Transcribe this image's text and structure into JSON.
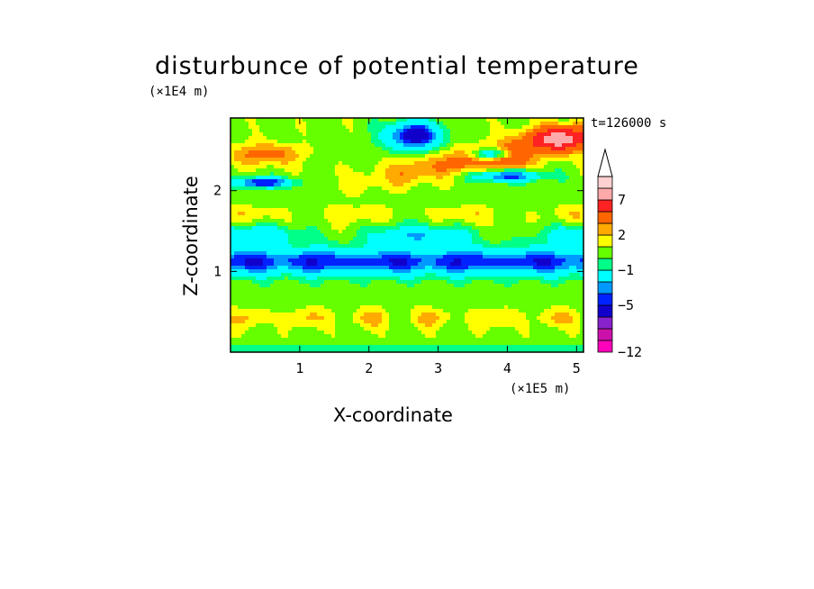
{
  "chart_data": {
    "type": "heatmap",
    "title": "disturbunce of potential temperature",
    "xlabel": "X-coordinate",
    "ylabel": "Z-coordinate",
    "x_unit": "(×1E5 m)",
    "y_unit": "(×1E4 m)",
    "annotation": "t=126000 s",
    "xlim": [
      0,
      5.1
    ],
    "ylim": [
      0,
      2.9
    ],
    "x_ticks": [
      1,
      2,
      3,
      4,
      5
    ],
    "y_ticks": [
      1,
      2
    ],
    "colorbar": {
      "levels": [
        -12,
        -11,
        -9,
        -7,
        -5,
        -4,
        -3,
        -1,
        0,
        1,
        2,
        3,
        5,
        7,
        9
      ],
      "tick_labels": [
        {
          "value": -12,
          "label": "−12"
        },
        {
          "value": -5,
          "label": "−5"
        },
        {
          "value": -1,
          "label": "−1"
        },
        {
          "value": 2,
          "label": "2"
        },
        {
          "value": 7,
          "label": "7"
        }
      ],
      "colors": [
        "#ff00bb",
        "#cc11aa",
        "#8822cc",
        "#1100cc",
        "#0022ff",
        "#0099ff",
        "#00ffff",
        "#00ff88",
        "#66ff00",
        "#ffff00",
        "#ffaa00",
        "#ff6600",
        "#ff2222",
        "#ffaaaa",
        "#ffd0d0"
      ],
      "extend": "max"
    },
    "features": [
      {
        "x_range": [
          0,
          5.1
        ],
        "z_range": [
          0.85,
          1.4
        ],
        "value_range": [
          -5,
          -3
        ],
        "description": "continuous cold band"
      },
      {
        "x_range": [
          2.2,
          3.2
        ],
        "z_range": [
          2.45,
          2.85
        ],
        "value_range": [
          -5,
          -3
        ],
        "description": "cold core aloft"
      },
      {
        "x_range": [
          0,
          1.0
        ],
        "z_range": [
          2.0,
          2.2
        ],
        "value_range": [
          -5,
          -3
        ],
        "description": "cold lens"
      },
      {
        "x_range": [
          3.0,
          5.1
        ],
        "z_range": [
          1.9,
          2.75
        ],
        "value_range": [
          3,
          7
        ],
        "description": "warm tilted band"
      },
      {
        "x_range": [
          0,
          5.1
        ],
        "z_range": [
          0.2,
          0.6
        ],
        "value_range": [
          1,
          2
        ],
        "description": "low level warm patches"
      }
    ]
  }
}
